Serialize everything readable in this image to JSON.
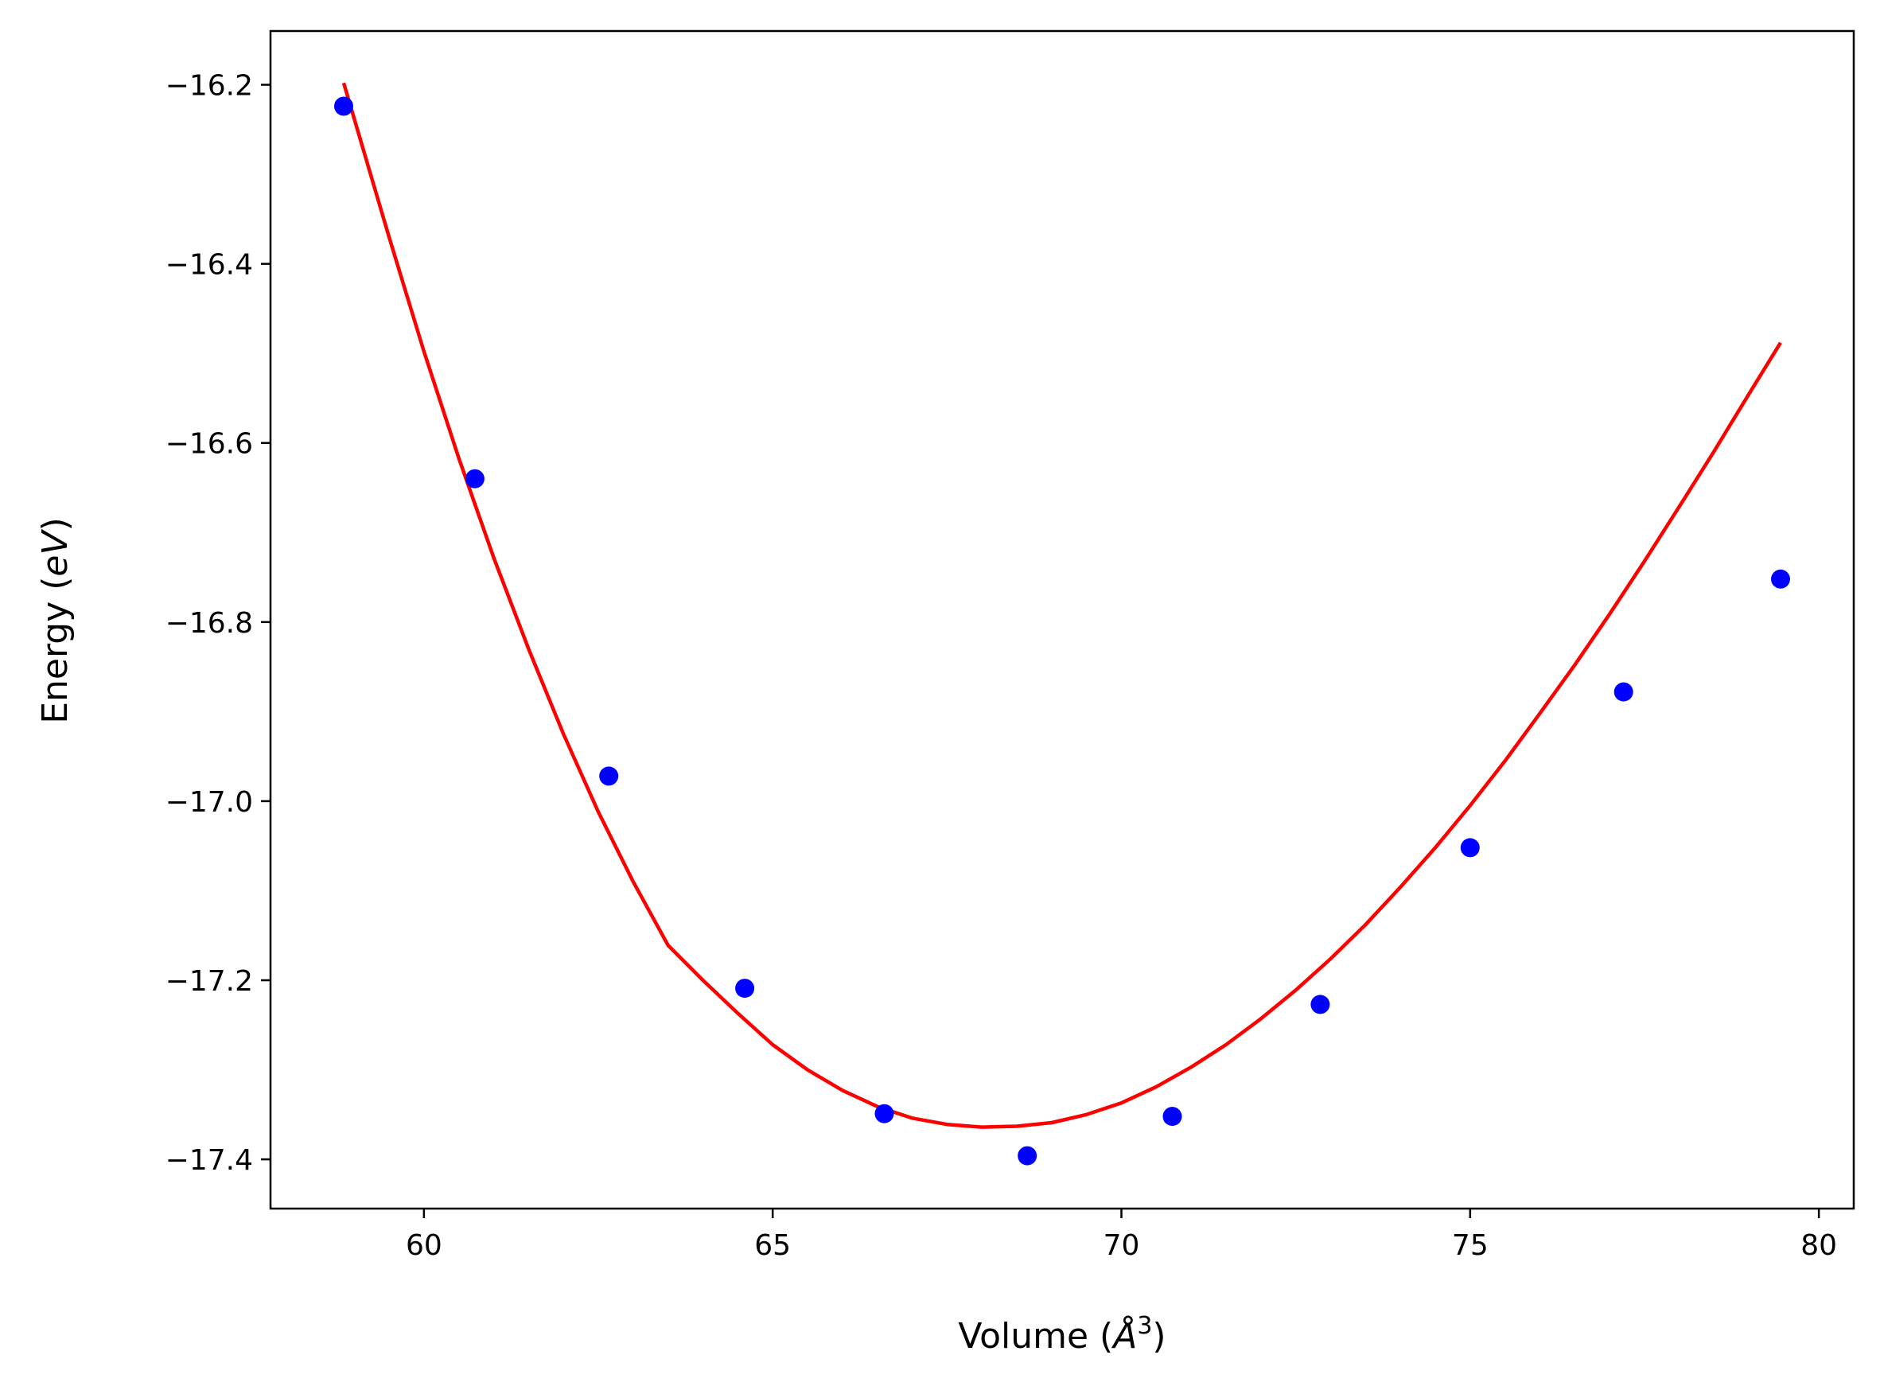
{
  "chart_data": {
    "type": "scatter",
    "title": "",
    "xlabel": {
      "prefix": "Volume (",
      "symbol": "Å",
      "power": "3",
      "suffix": ")"
    },
    "ylabel": {
      "prefix": "Energy (",
      "unit": "eV",
      "suffix": ")"
    },
    "xlim": [
      57.8,
      80.5
    ],
    "ylim": [
      -17.455,
      -16.14
    ],
    "xticks": [
      {
        "value": 60,
        "label": "60"
      },
      {
        "value": 65,
        "label": "65"
      },
      {
        "value": 70,
        "label": "70"
      },
      {
        "value": 75,
        "label": "75"
      },
      {
        "value": 80,
        "label": "80"
      }
    ],
    "yticks": [
      {
        "value": -16.2,
        "label": "−16.2"
      },
      {
        "value": -16.4,
        "label": "−16.4"
      },
      {
        "value": -16.6,
        "label": "−16.6"
      },
      {
        "value": -16.8,
        "label": "−16.8"
      },
      {
        "value": -17.0,
        "label": "−17.0"
      },
      {
        "value": -17.2,
        "label": "−17.2"
      },
      {
        "value": -17.4,
        "label": "−17.4"
      }
    ],
    "grid": false,
    "series": [
      {
        "kind": "points",
        "color": "#0000ff",
        "x": [
          58.85,
          60.73,
          62.65,
          64.6,
          66.6,
          68.65,
          70.73,
          72.85,
          75.0,
          77.2,
          79.45
        ],
        "y": [
          -16.224,
          -16.64,
          -16.972,
          -17.209,
          -17.349,
          -17.396,
          -17.352,
          -17.227,
          -17.052,
          -16.878,
          -16.752
        ]
      },
      {
        "kind": "fit",
        "color": "#ff0000",
        "x": [
          58.85,
          59.5,
          60.0,
          60.5,
          61.0,
          61.5,
          62.0,
          62.5,
          63.0,
          63.5,
          64.0,
          64.5,
          65.0,
          65.5,
          66.0,
          66.5,
          67.0,
          67.5,
          68.0,
          68.5,
          69.0,
          69.5,
          70.0,
          70.5,
          71.0,
          71.5,
          72.0,
          72.5,
          73.0,
          73.5,
          74.0,
          74.5,
          75.0,
          75.5,
          76.0,
          76.5,
          77.0,
          77.5,
          78.0,
          78.5,
          79.0,
          79.45
        ],
        "y": [
          -16.198,
          -16.37,
          -16.498,
          -16.617,
          -16.728,
          -16.83,
          -16.925,
          -17.012,
          -17.09,
          -17.161,
          -17.2,
          -17.237,
          -17.272,
          -17.3,
          -17.323,
          -17.341,
          -17.354,
          -17.361,
          -17.364,
          -17.363,
          -17.359,
          -17.35,
          -17.337,
          -17.319,
          -17.297,
          -17.272,
          -17.243,
          -17.211,
          -17.176,
          -17.138,
          -17.096,
          -17.052,
          -17.005,
          -16.955,
          -16.902,
          -16.848,
          -16.791,
          -16.732,
          -16.671,
          -16.609,
          -16.545,
          -16.488
        ]
      }
    ]
  }
}
